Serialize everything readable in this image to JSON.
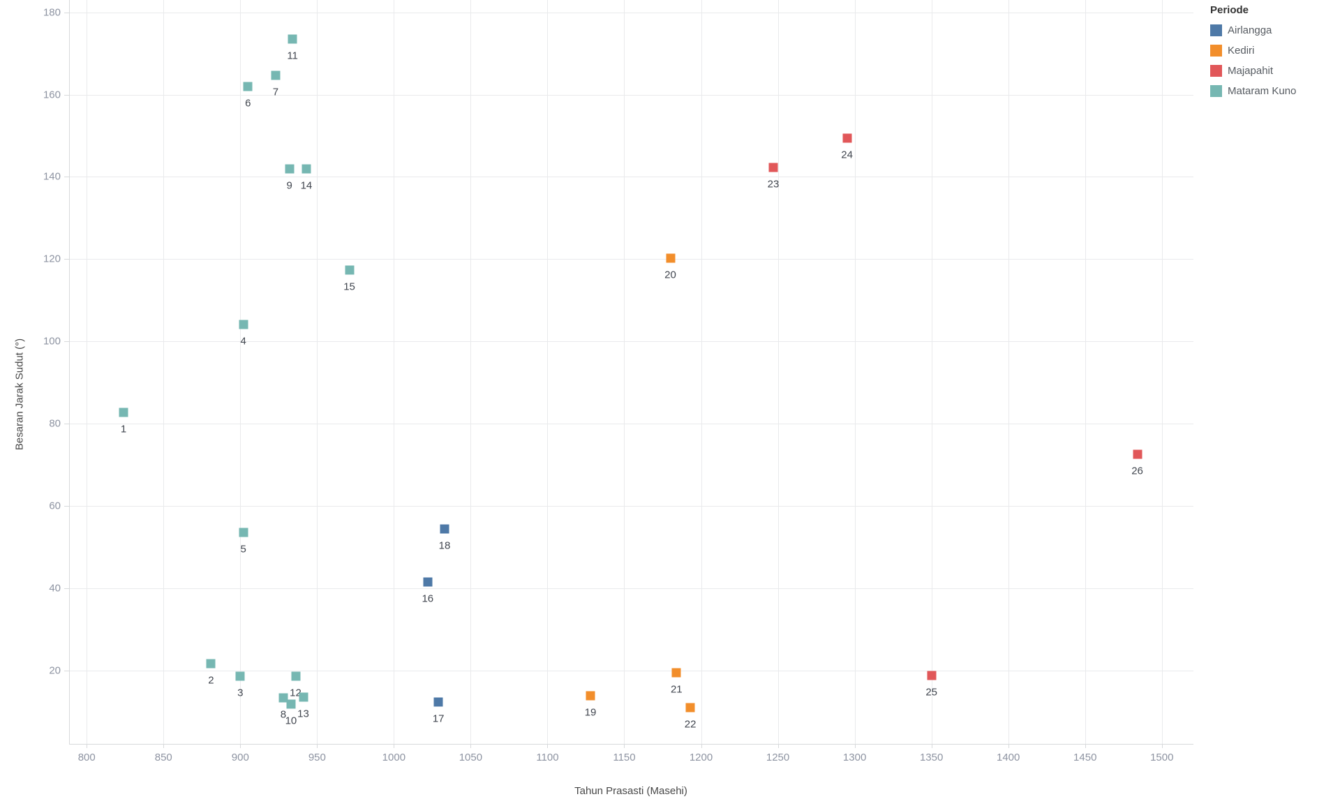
{
  "chart_data": {
    "type": "scatter",
    "title": "",
    "xlabel": "Tahun Prasasti (Masehi)",
    "ylabel": "Besaran Jarak Sudut (°)",
    "legend_title": "Periode",
    "legend_position": "top-right",
    "grid": true,
    "marker_shape": "square",
    "xlim": [
      789,
      1521
    ],
    "ylim": [
      2,
      183
    ],
    "x_ticks": [
      800,
      850,
      900,
      950,
      1000,
      1050,
      1100,
      1150,
      1200,
      1250,
      1300,
      1350,
      1400,
      1450,
      1500
    ],
    "y_ticks": [
      20,
      40,
      60,
      80,
      100,
      120,
      140,
      160,
      180
    ],
    "series": [
      {
        "name": "Airlangga",
        "color": "#4E79A7",
        "points": [
          {
            "label": "16",
            "x": 1022,
            "y": 41.5
          },
          {
            "label": "17",
            "x": 1029,
            "y": 12.3
          },
          {
            "label": "18",
            "x": 1033,
            "y": 54.5
          }
        ]
      },
      {
        "name": "Kediri",
        "color": "#F28E2B",
        "points": [
          {
            "label": "19",
            "x": 1128,
            "y": 13.8
          },
          {
            "label": "20",
            "x": 1180,
            "y": 120.3
          },
          {
            "label": "21",
            "x": 1184,
            "y": 19.4
          },
          {
            "label": "22",
            "x": 1193,
            "y": 11.0
          }
        ]
      },
      {
        "name": "Majapahit",
        "color": "#E15759",
        "points": [
          {
            "label": "23",
            "x": 1247,
            "y": 142.3
          },
          {
            "label": "24",
            "x": 1295,
            "y": 149.4
          },
          {
            "label": "25",
            "x": 1350,
            "y": 18.8
          },
          {
            "label": "26",
            "x": 1484,
            "y": 72.5
          }
        ]
      },
      {
        "name": "Mataram Kuno",
        "color": "#76B7B2",
        "points": [
          {
            "label": "1",
            "x": 824,
            "y": 82.7
          },
          {
            "label": "2",
            "x": 881,
            "y": 21.7
          },
          {
            "label": "3",
            "x": 900,
            "y": 18.6
          },
          {
            "label": "4",
            "x": 902,
            "y": 104.1
          },
          {
            "label": "5",
            "x": 902,
            "y": 53.5
          },
          {
            "label": "6",
            "x": 905,
            "y": 162.0
          },
          {
            "label": "7",
            "x": 923,
            "y": 164.7
          },
          {
            "label": "8",
            "x": 928,
            "y": 13.3
          },
          {
            "label": "9",
            "x": 932,
            "y": 142.0
          },
          {
            "label": "10",
            "x": 933,
            "y": 11.9
          },
          {
            "label": "11",
            "x": 934,
            "y": 173.5
          },
          {
            "label": "12",
            "x": 936,
            "y": 18.6
          },
          {
            "label": "13",
            "x": 941,
            "y": 13.5
          },
          {
            "label": "14",
            "x": 943,
            "y": 142.0
          },
          {
            "label": "15",
            "x": 971,
            "y": 117.3
          }
        ]
      }
    ],
    "styles": {
      "background": "#ffffff",
      "gridline": "#e9eaec",
      "axis_line": "#d7d9db",
      "tick_label": "#8d93a1",
      "axis_title": "#474747",
      "point_label": "#41464f",
      "legend_title_color": "#333333",
      "legend_text_color": "#565b61"
    }
  }
}
